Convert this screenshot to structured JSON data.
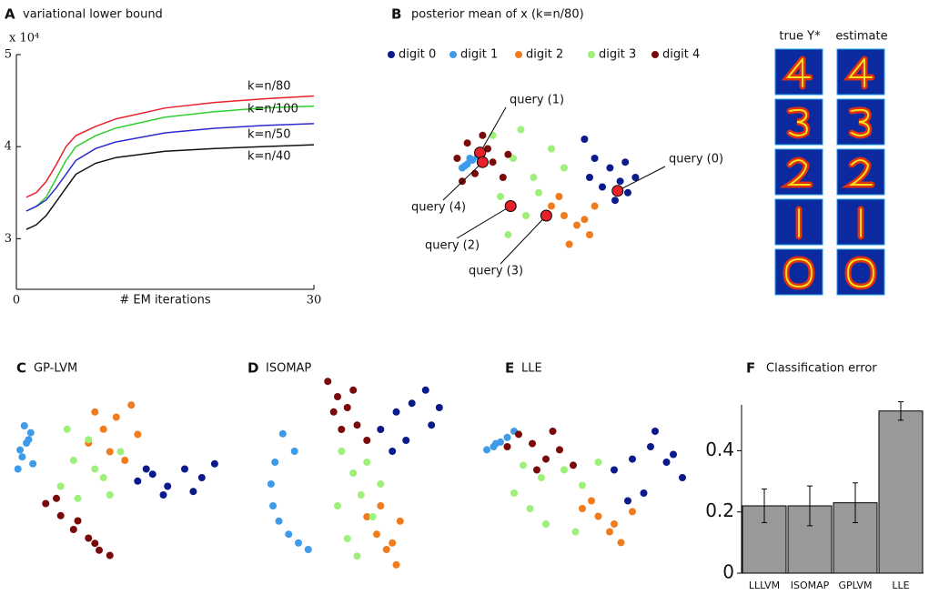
{
  "chart_data": [
    {
      "type": "line",
      "panel": "A",
      "title": "variational lower bound",
      "y_scale_label": "x 10⁴",
      "x_label": "# EM iterations",
      "x": [
        1,
        2,
        3,
        4,
        5,
        6,
        8,
        10,
        15,
        20,
        25,
        30
      ],
      "xlim": [
        0,
        30
      ],
      "xticks": [
        0,
        30
      ],
      "ylim": [
        2.45,
        5
      ],
      "yticks": [
        3,
        4,
        5
      ],
      "series": [
        {
          "name": "k=n/80",
          "color": "#e8202a",
          "values": [
            3.45,
            3.5,
            3.62,
            3.8,
            4.0,
            4.12,
            4.22,
            4.3,
            4.42,
            4.48,
            4.52,
            4.55
          ]
        },
        {
          "name": "k=n/100",
          "color": "#2fcf2f",
          "values": [
            3.3,
            3.35,
            3.45,
            3.65,
            3.85,
            4.0,
            4.12,
            4.2,
            4.32,
            4.38,
            4.42,
            4.44
          ]
        },
        {
          "name": "k=n/50",
          "color": "#2a2ad0",
          "values": [
            3.3,
            3.35,
            3.42,
            3.55,
            3.7,
            3.85,
            3.98,
            4.05,
            4.15,
            4.2,
            4.23,
            4.25
          ]
        },
        {
          "name": "k=n/40",
          "color": "#111111",
          "values": [
            3.1,
            3.15,
            3.25,
            3.4,
            3.55,
            3.7,
            3.82,
            3.88,
            3.95,
            3.98,
            4.0,
            4.02
          ]
        }
      ]
    },
    {
      "type": "scatter",
      "panel": "B",
      "title": "posterior mean of x (k=n/80)",
      "xlim": [
        0,
        100
      ],
      "ylim": [
        0,
        100
      ],
      "image_columns": [
        "true Y*",
        "estimate"
      ],
      "series": [
        {
          "name": "digit 0",
          "color": "#0a1a8c",
          "x": [
            58,
            62,
            68,
            72,
            75,
            78,
            65,
            70,
            60,
            74
          ],
          "y": [
            70,
            60,
            55,
            48,
            42,
            50,
            45,
            38,
            50,
            58
          ]
        },
        {
          "name": "digit 1",
          "color": "#3d9be9",
          "x": [
            10,
            12,
            14,
            16,
            18,
            11,
            13
          ],
          "y": [
            55,
            57,
            59,
            61,
            63,
            56,
            60
          ]
        },
        {
          "name": "digit 2",
          "color": "#f07c1e",
          "x": [
            45,
            50,
            55,
            60,
            52,
            58,
            62,
            48
          ],
          "y": [
            35,
            30,
            25,
            20,
            15,
            28,
            35,
            40
          ]
        },
        {
          "name": "digit 3",
          "color": "#9ef07a",
          "x": [
            22,
            30,
            38,
            45,
            35,
            28,
            40,
            50,
            25,
            33
          ],
          "y": [
            72,
            60,
            50,
            65,
            30,
            20,
            42,
            55,
            40,
            75
          ]
        },
        {
          "name": "digit 4",
          "color": "#7a0a0a",
          "x": [
            8,
            12,
            18,
            22,
            26,
            15,
            20,
            28,
            10
          ],
          "y": [
            60,
            68,
            72,
            58,
            50,
            52,
            65,
            62,
            48
          ]
        }
      ],
      "queries": {
        "labels": [
          "query (0)",
          "query (1)",
          "query (2)",
          "query (3)",
          "query (4)"
        ],
        "color": "#e8202a",
        "x": [
          71,
          17,
          29,
          43,
          18
        ],
        "y": [
          43,
          63,
          35,
          30,
          58
        ]
      }
    },
    {
      "type": "scatter",
      "panel": "C",
      "title": "GP-LVM",
      "xlim": [
        0,
        100
      ],
      "ylim": [
        0,
        100
      ],
      "series": [
        {
          "name": "digit 0",
          "color": "#0a1a8c",
          "x": [
            58,
            65,
            72,
            80,
            88,
            94,
            70,
            84,
            62
          ],
          "y": [
            48,
            52,
            45,
            55,
            50,
            58,
            40,
            42,
            55
          ]
        },
        {
          "name": "digit 1",
          "color": "#3d9be9",
          "x": [
            2,
            4,
            6,
            8,
            5,
            3,
            9,
            7
          ],
          "y": [
            55,
            62,
            70,
            76,
            80,
            66,
            58,
            72
          ]
        },
        {
          "name": "digit 2",
          "color": "#f07c1e",
          "x": [
            35,
            42,
            48,
            55,
            58,
            45,
            38,
            52
          ],
          "y": [
            70,
            78,
            85,
            92,
            75,
            65,
            88,
            60
          ]
        },
        {
          "name": "digit 3",
          "color": "#9ef07a",
          "x": [
            22,
            28,
            35,
            42,
            50,
            30,
            45,
            25,
            38
          ],
          "y": [
            45,
            60,
            72,
            50,
            65,
            38,
            40,
            78,
            55
          ]
        },
        {
          "name": "digit 4",
          "color": "#7a0a0a",
          "x": [
            15,
            22,
            28,
            35,
            40,
            45,
            30,
            20,
            38
          ],
          "y": [
            35,
            28,
            20,
            15,
            8,
            5,
            25,
            38,
            12
          ]
        }
      ]
    },
    {
      "type": "scatter",
      "panel": "D",
      "title": "ISOMAP",
      "xlim": [
        0,
        100
      ],
      "ylim": [
        0,
        100
      ],
      "series": [
        {
          "name": "digit 0",
          "color": "#0a1a8c",
          "x": [
            62,
            70,
            78,
            85,
            92,
            75,
            68,
            88
          ],
          "y": [
            70,
            78,
            82,
            88,
            80,
            65,
            60,
            72
          ]
        },
        {
          "name": "digit 1",
          "color": "#3d9be9",
          "x": [
            8,
            6,
            7,
            10,
            15,
            20,
            25,
            18,
            12
          ],
          "y": [
            55,
            45,
            35,
            28,
            22,
            18,
            15,
            60,
            68
          ]
        },
        {
          "name": "digit 2",
          "color": "#f07c1e",
          "x": [
            55,
            60,
            65,
            70,
            72,
            62,
            68
          ],
          "y": [
            30,
            22,
            15,
            8,
            28,
            35,
            18
          ]
        },
        {
          "name": "digit 3",
          "color": "#9ef07a",
          "x": [
            42,
            48,
            52,
            58,
            45,
            55,
            50,
            62,
            40
          ],
          "y": [
            60,
            50,
            40,
            30,
            20,
            55,
            12,
            45,
            35
          ]
        },
        {
          "name": "digit 4",
          "color": "#7a0a0a",
          "x": [
            35,
            40,
            45,
            50,
            55,
            42,
            48,
            38
          ],
          "y": [
            92,
            85,
            80,
            72,
            65,
            70,
            88,
            78
          ]
        }
      ]
    },
    {
      "type": "scatter",
      "panel": "E",
      "title": "LLE",
      "xlim": [
        0,
        100
      ],
      "ylim": [
        0,
        100
      ],
      "series": [
        {
          "name": "digit 0",
          "color": "#0a1a8c",
          "x": [
            62,
            70,
            78,
            85,
            92,
            75,
            68,
            88,
            80
          ],
          "y": [
            55,
            62,
            70,
            60,
            50,
            40,
            35,
            65,
            80
          ]
        },
        {
          "name": "digit 1",
          "color": "#3d9be9",
          "x": [
            6,
            9,
            12,
            15,
            18,
            10
          ],
          "y": [
            68,
            70,
            73,
            76,
            80,
            72
          ]
        },
        {
          "name": "digit 2",
          "color": "#f07c1e",
          "x": [
            48,
            55,
            60,
            65,
            70,
            52,
            62
          ],
          "y": [
            30,
            25,
            15,
            8,
            28,
            35,
            20
          ]
        },
        {
          "name": "digit 3",
          "color": "#9ef07a",
          "x": [
            18,
            25,
            32,
            40,
            48,
            55,
            30,
            45,
            22
          ],
          "y": [
            40,
            30,
            20,
            55,
            45,
            60,
            50,
            15,
            58
          ]
        },
        {
          "name": "digit 4",
          "color": "#7a0a0a",
          "x": [
            15,
            20,
            26,
            32,
            38,
            44,
            28,
            35
          ],
          "y": [
            70,
            78,
            72,
            62,
            68,
            58,
            55,
            80
          ]
        }
      ]
    },
    {
      "type": "bar",
      "panel": "F",
      "title": "Classification error",
      "color": "#999999",
      "categories": [
        "LLLVM",
        "ISOMAP",
        "GPLVM",
        "LLE"
      ],
      "values": [
        0.22,
        0.22,
        0.23,
        0.53
      ],
      "errors": [
        0.055,
        0.065,
        0.065,
        0.03
      ],
      "ylim": [
        0,
        0.55
      ],
      "yticks": [
        0,
        0.2,
        0.4
      ]
    }
  ]
}
